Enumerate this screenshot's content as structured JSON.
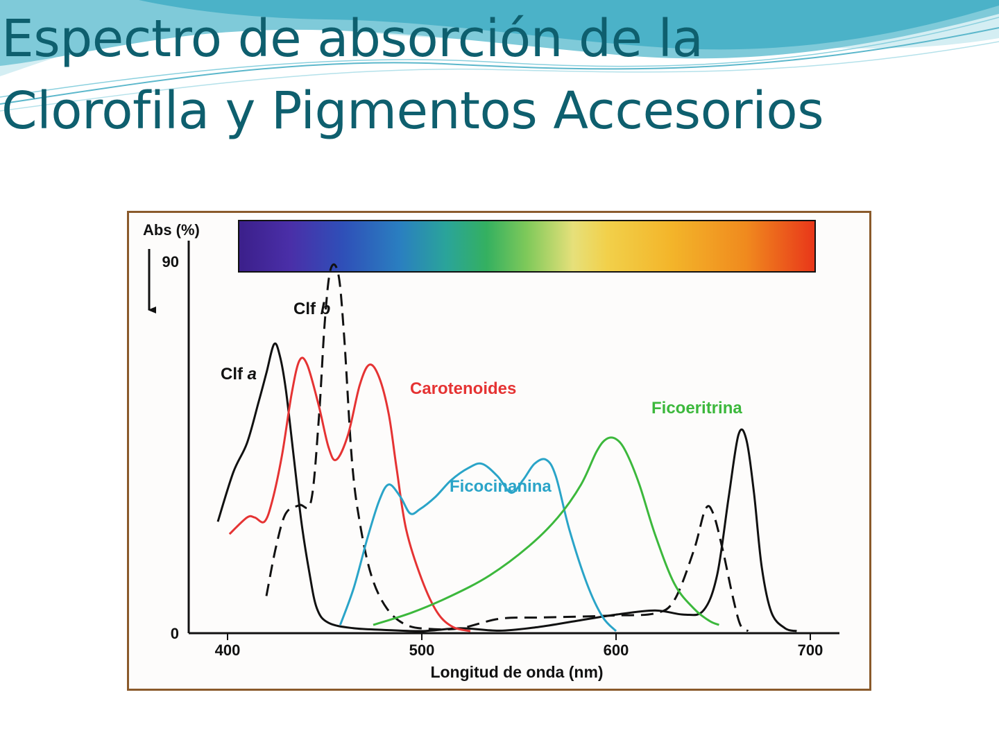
{
  "slide": {
    "title_line1": "Espectro de absorción de la",
    "title_line2": "Clorofila y Pigmentos Accesorios",
    "title_color": "#0e5f6e",
    "wave_colors": [
      "#bfe6ee",
      "#4fb6cc",
      "#1c8ea6"
    ]
  },
  "chart_data": {
    "type": "line",
    "title": "",
    "xlabel": "Longitud de onda (nm)",
    "ylabel": "Abs (%)",
    "xlim": [
      380,
      700
    ],
    "ylim": [
      0,
      90
    ],
    "xticks": [
      400,
      500,
      600,
      700
    ],
    "yticks": [
      0,
      90
    ],
    "grid": false,
    "legend": "none",
    "spectrum_bar": true,
    "y_arrow": "down",
    "series": [
      {
        "name": "Clf a",
        "color": "#111111",
        "dash": false,
        "points": [
          [
            395,
            27
          ],
          [
            403,
            39
          ],
          [
            410,
            46
          ],
          [
            416,
            56
          ],
          [
            420,
            63
          ],
          [
            424,
            70
          ],
          [
            427,
            67
          ],
          [
            430,
            59
          ],
          [
            434,
            43
          ],
          [
            438,
            27
          ],
          [
            442,
            15
          ],
          [
            446,
            6
          ],
          [
            452,
            2.5
          ],
          [
            465,
            1.2
          ],
          [
            480,
            0.8
          ],
          [
            500,
            0.5
          ],
          [
            520,
            1.2
          ],
          [
            540,
            0.6
          ],
          [
            560,
            1.5
          ],
          [
            580,
            3
          ],
          [
            600,
            4.5
          ],
          [
            620,
            5.5
          ],
          [
            635,
            4.5
          ],
          [
            645,
            5.5
          ],
          [
            652,
            14
          ],
          [
            658,
            33
          ],
          [
            663,
            48
          ],
          [
            667,
            47
          ],
          [
            671,
            34
          ],
          [
            675,
            16
          ],
          [
            680,
            5
          ],
          [
            687,
            1.2
          ],
          [
            693,
            0.5
          ]
        ]
      },
      {
        "name": "Clf b",
        "color": "#111111",
        "dash": true,
        "points": [
          [
            420,
            9
          ],
          [
            425,
            21
          ],
          [
            430,
            29
          ],
          [
            437,
            31
          ],
          [
            443,
            32
          ],
          [
            447,
            52
          ],
          [
            450,
            75
          ],
          [
            453,
            88
          ],
          [
            457,
            87
          ],
          [
            460,
            72
          ],
          [
            464,
            42
          ],
          [
            468,
            27
          ],
          [
            474,
            14
          ],
          [
            482,
            6
          ],
          [
            492,
            2
          ],
          [
            505,
            1
          ],
          [
            520,
            1.2
          ],
          [
            540,
            3.5
          ],
          [
            560,
            3.8
          ],
          [
            580,
            4
          ],
          [
            600,
            4.3
          ],
          [
            620,
            4.8
          ],
          [
            630,
            8
          ],
          [
            640,
            20
          ],
          [
            646,
            30
          ],
          [
            650,
            29
          ],
          [
            655,
            20
          ],
          [
            660,
            9
          ],
          [
            664,
            2
          ],
          [
            668,
            0.5
          ]
        ]
      },
      {
        "name": "Carotenoides",
        "color": "#e53333",
        "dash": false,
        "points": [
          [
            401,
            24
          ],
          [
            410,
            28
          ],
          [
            414,
            28
          ],
          [
            419,
            27
          ],
          [
            423,
            32
          ],
          [
            428,
            43
          ],
          [
            433,
            58
          ],
          [
            437,
            66
          ],
          [
            441,
            65
          ],
          [
            447,
            55
          ],
          [
            452,
            45
          ],
          [
            456,
            42
          ],
          [
            462,
            48
          ],
          [
            468,
            60
          ],
          [
            473,
            65
          ],
          [
            478,
            62
          ],
          [
            483,
            53
          ],
          [
            487,
            40
          ],
          [
            492,
            25
          ],
          [
            500,
            13
          ],
          [
            508,
            5
          ],
          [
            516,
            1.5
          ],
          [
            525,
            0.5
          ]
        ]
      },
      {
        "name": "Ficocinanina",
        "color": "#2aa4c8",
        "dash": false,
        "points": [
          [
            458,
            2
          ],
          [
            465,
            11
          ],
          [
            472,
            23
          ],
          [
            478,
            32
          ],
          [
            483,
            36
          ],
          [
            489,
            33
          ],
          [
            494,
            29
          ],
          [
            499,
            30
          ],
          [
            507,
            33
          ],
          [
            515,
            37
          ],
          [
            524,
            40
          ],
          [
            531,
            41
          ],
          [
            539,
            38
          ],
          [
            546,
            34
          ],
          [
            552,
            37
          ],
          [
            558,
            41
          ],
          [
            564,
            42
          ],
          [
            569,
            38
          ],
          [
            576,
            25
          ],
          [
            585,
            12
          ],
          [
            593,
            4
          ],
          [
            600,
            0.5
          ]
        ]
      },
      {
        "name": "Ficoeritrina",
        "color": "#3cb83c",
        "dash": false,
        "points": [
          [
            475,
            2
          ],
          [
            495,
            5
          ],
          [
            515,
            9
          ],
          [
            535,
            14
          ],
          [
            555,
            21
          ],
          [
            570,
            28
          ],
          [
            582,
            36
          ],
          [
            590,
            44
          ],
          [
            595,
            47
          ],
          [
            600,
            47
          ],
          [
            605,
            44
          ],
          [
            612,
            36
          ],
          [
            620,
            24
          ],
          [
            630,
            12
          ],
          [
            640,
            6
          ],
          [
            648,
            3
          ],
          [
            653,
            2
          ]
        ]
      }
    ],
    "labels": [
      {
        "text": "Clf ",
        "emph": "a",
        "series": "Clf a"
      },
      {
        "text": "Clf ",
        "emph": "b",
        "series": "Clf b"
      },
      {
        "text": "Carotenoides",
        "series": "Carotenoides"
      },
      {
        "text": "Ficoeritrina",
        "series": "Ficoeritrina"
      },
      {
        "text": "Ficocinanina",
        "series": "Ficocinanina"
      }
    ]
  }
}
